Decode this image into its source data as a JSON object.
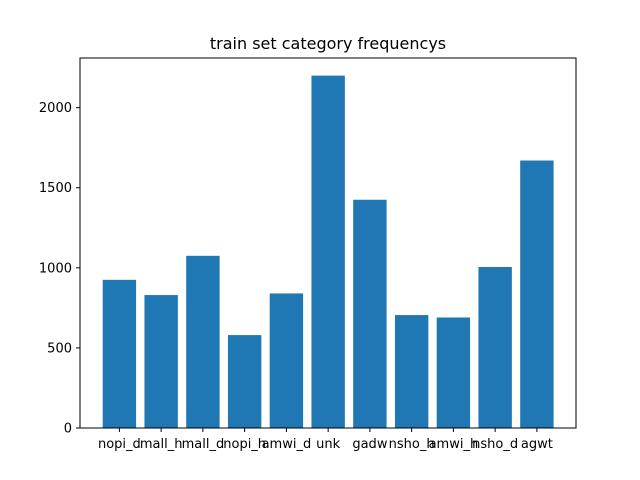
{
  "chart_data": {
    "type": "bar",
    "title": "train set category frequencys",
    "xlabel": "",
    "ylabel": "",
    "categories": [
      "nopi_d",
      "mall_h",
      "mall_d",
      "nopi_h",
      "amwi_d",
      "unk",
      "gadw",
      "nsho_h",
      "amwi_h",
      "nsho_d",
      "agwt"
    ],
    "values": [
      925,
      830,
      1075,
      580,
      840,
      2200,
      1425,
      705,
      690,
      1005,
      1670
    ],
    "ylim": [
      0,
      2310
    ],
    "yticks": [
      0,
      500,
      1000,
      1500,
      2000
    ],
    "ytick_labels": [
      "0",
      "500",
      "1000",
      "1500",
      "2000"
    ],
    "bar_color": "#1f77b4",
    "grid": false,
    "legend": "none"
  }
}
